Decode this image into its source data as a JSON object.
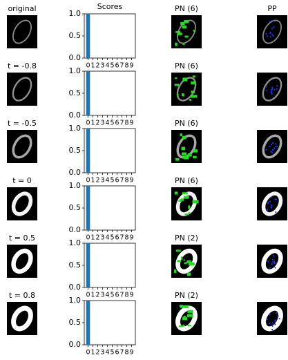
{
  "panels": [
    {
      "label": "original",
      "pn_title": "PN (6)",
      "pp_title": "PP"
    },
    {
      "label": "t = -0.8",
      "pn_title": "PN (6)"
    },
    {
      "label": "t = -0.5",
      "pn_title": "PN (6)"
    },
    {
      "label": "t = 0",
      "pn_title": "PN (6)"
    },
    {
      "label": "t = 0.5",
      "pn_title": "PN (2)"
    },
    {
      "label": "t = 0.8",
      "pn_title": "PN (2)"
    }
  ],
  "chart_data": [
    {
      "type": "bar",
      "title": "Scores",
      "categories": [
        "0",
        "1",
        "2",
        "3",
        "4",
        "5",
        "6",
        "7",
        "8",
        "9"
      ],
      "values": [
        1,
        0,
        0,
        0,
        0,
        0,
        0,
        0,
        0,
        0
      ],
      "color": "#1f77b4",
      "ylim": [
        0,
        1
      ],
      "yticks": [
        {
          "value": 0,
          "label": "0.0"
        },
        {
          "value": 0.5,
          "label": "0.5"
        },
        {
          "value": 1,
          "label": "1.0"
        }
      ]
    },
    {
      "type": "bar",
      "categories": [
        "0",
        "1",
        "2",
        "3",
        "4",
        "5",
        "6",
        "7",
        "8",
        "9"
      ],
      "values": [
        1,
        0,
        0,
        0,
        0,
        0,
        0,
        0,
        0,
        0
      ],
      "color": "#1f77b4",
      "ylim": [
        0,
        1
      ],
      "yticks": [
        {
          "value": 0,
          "label": "0.0"
        },
        {
          "value": 0.5,
          "label": "0.5"
        },
        {
          "value": 1,
          "label": "1.0"
        }
      ]
    },
    {
      "type": "bar",
      "categories": [
        "0",
        "1",
        "2",
        "3",
        "4",
        "5",
        "6",
        "7",
        "8",
        "9"
      ],
      "values": [
        1,
        0,
        0,
        0,
        0,
        0,
        0,
        0,
        0,
        0
      ],
      "color": "#1f77b4",
      "ylim": [
        0,
        1
      ],
      "yticks": [
        {
          "value": 0,
          "label": "0.0"
        },
        {
          "value": 0.5,
          "label": "0.5"
        },
        {
          "value": 1,
          "label": "1.0"
        }
      ]
    },
    {
      "type": "bar",
      "categories": [
        "0",
        "1",
        "2",
        "3",
        "4",
        "5",
        "6",
        "7",
        "8",
        "9"
      ],
      "values": [
        1,
        0,
        0,
        0,
        0,
        0,
        0,
        0,
        0,
        0
      ],
      "color": "#1f77b4",
      "ylim": [
        0,
        1
      ],
      "yticks": [
        {
          "value": 0,
          "label": "0.0"
        },
        {
          "value": 0.5,
          "label": "0.5"
        },
        {
          "value": 1,
          "label": "1.0"
        }
      ]
    },
    {
      "type": "bar",
      "categories": [
        "0",
        "1",
        "2",
        "3",
        "4",
        "5",
        "6",
        "7",
        "8",
        "9"
      ],
      "values": [
        1,
        0,
        0,
        0,
        0,
        0,
        0,
        0,
        0,
        0
      ],
      "color": "#1f77b4",
      "ylim": [
        0,
        1
      ],
      "yticks": [
        {
          "value": 0,
          "label": "0.0"
        },
        {
          "value": 0.5,
          "label": "0.5"
        },
        {
          "value": 1,
          "label": "1.0"
        }
      ]
    },
    {
      "type": "bar",
      "categories": [
        "0",
        "1",
        "2",
        "3",
        "4",
        "5",
        "6",
        "7",
        "8",
        "9"
      ],
      "values": [
        1,
        0,
        0,
        0,
        0,
        0,
        0,
        0,
        0,
        0
      ],
      "color": "#1f77b4",
      "ylim": [
        0,
        1
      ],
      "yticks": [
        {
          "value": 0,
          "label": "0.0"
        },
        {
          "value": 0.5,
          "label": "0.5"
        },
        {
          "value": 1,
          "label": "1.0"
        }
      ]
    }
  ]
}
